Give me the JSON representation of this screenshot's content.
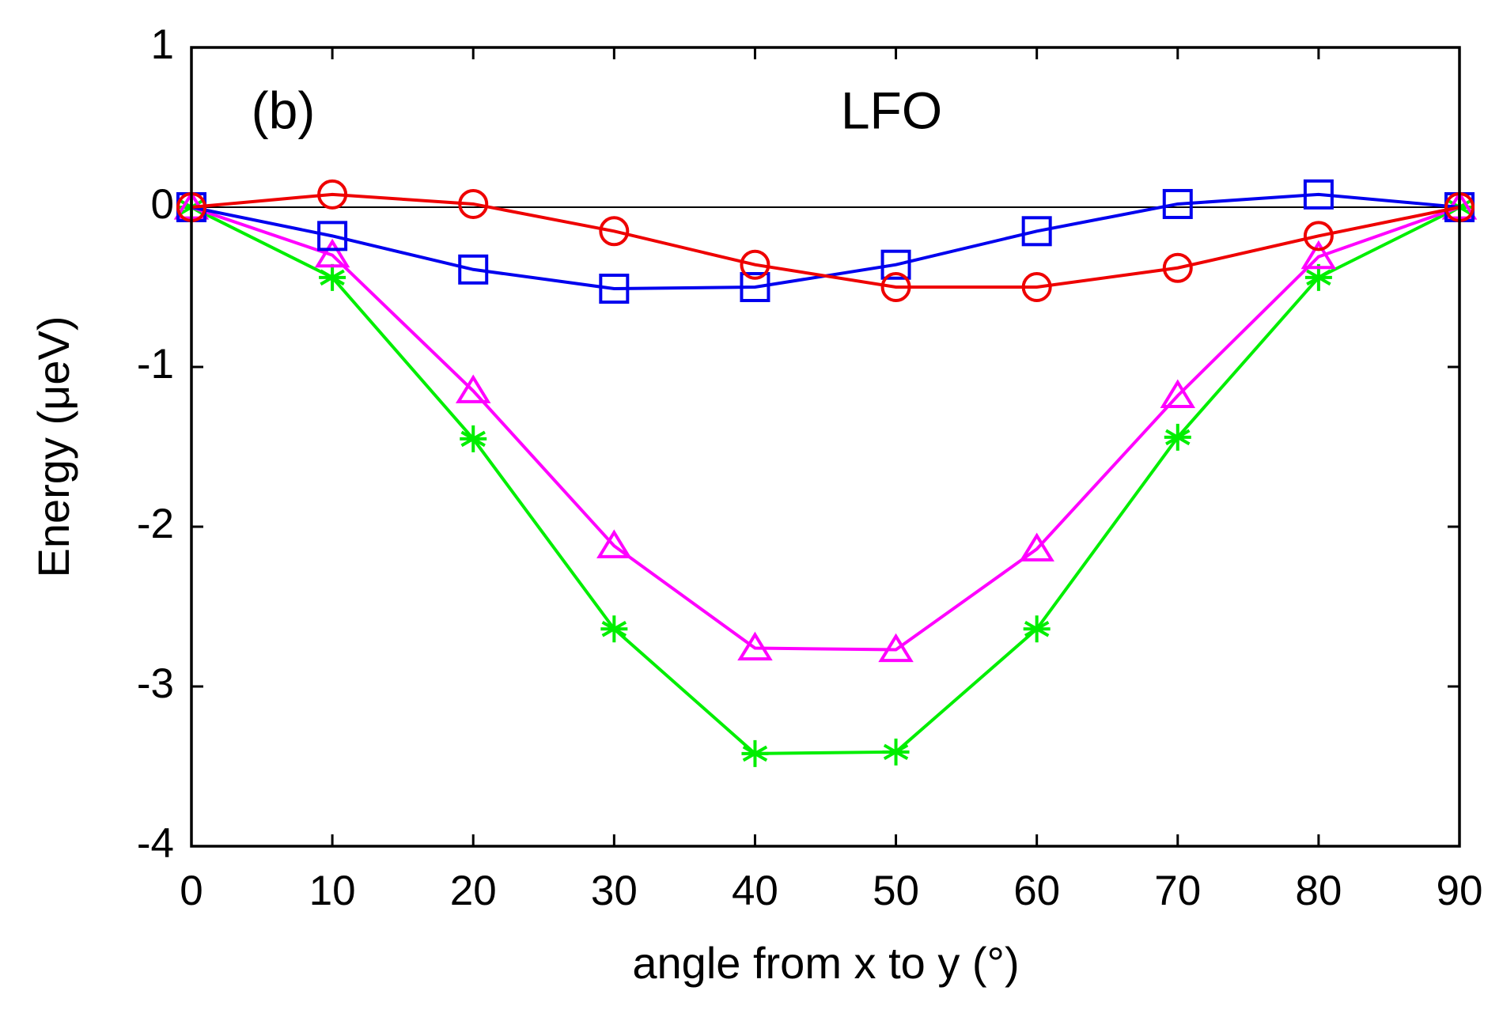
{
  "chart_data": {
    "type": "line",
    "annotations": [
      "(b)",
      "LFO"
    ],
    "xlabel": "angle from x to y (°)",
    "ylabel": "Energy (μeV)",
    "x": [
      0,
      10,
      20,
      30,
      40,
      50,
      60,
      70,
      80,
      90
    ],
    "xlim": [
      0,
      90
    ],
    "xticks": [
      0,
      10,
      20,
      30,
      40,
      50,
      60,
      70,
      80,
      90
    ],
    "ylim": [
      -4,
      1
    ],
    "yticks": [
      -4,
      -3,
      -2,
      -1,
      0,
      1
    ],
    "zero_line": true,
    "series": [
      {
        "color": "#00ee00",
        "marker": "star",
        "values": [
          0,
          -0.44,
          -1.45,
          -2.64,
          -3.42,
          -3.41,
          -2.64,
          -1.44,
          -0.44,
          0
        ]
      },
      {
        "color": "#ff00ff",
        "marker": "triangle",
        "values": [
          0,
          -0.3,
          -1.15,
          -2.12,
          -2.76,
          -2.77,
          -2.14,
          -1.18,
          -0.31,
          0
        ]
      },
      {
        "color": "#0000ee",
        "marker": "square",
        "values": [
          0,
          -0.18,
          -0.39,
          -0.51,
          -0.5,
          -0.36,
          -0.15,
          0.02,
          0.08,
          0
        ]
      },
      {
        "color": "#ee0000",
        "marker": "circle",
        "values": [
          0,
          0.08,
          0.02,
          -0.15,
          -0.36,
          -0.5,
          -0.5,
          -0.38,
          -0.18,
          0
        ]
      }
    ]
  }
}
